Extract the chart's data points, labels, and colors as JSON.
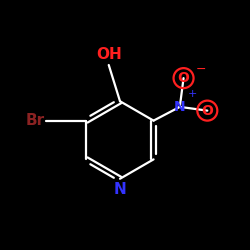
{
  "background_color": "#000000",
  "bond_color": "#ffffff",
  "label_Br": "Br",
  "label_Br_color": "#8b2222",
  "label_OH": "OH",
  "label_OH_color": "#ff2020",
  "label_N_plus": "N",
  "label_N_plus_color": "#3333ff",
  "label_N_ring": "N",
  "label_N_ring_color": "#3333ff",
  "label_O_minus": "O",
  "label_O_minus_color": "#ff2020",
  "label_O_lower": "O",
  "label_O_lower_color": "#ff2020",
  "figsize": [
    2.5,
    2.5
  ],
  "dpi": 100
}
